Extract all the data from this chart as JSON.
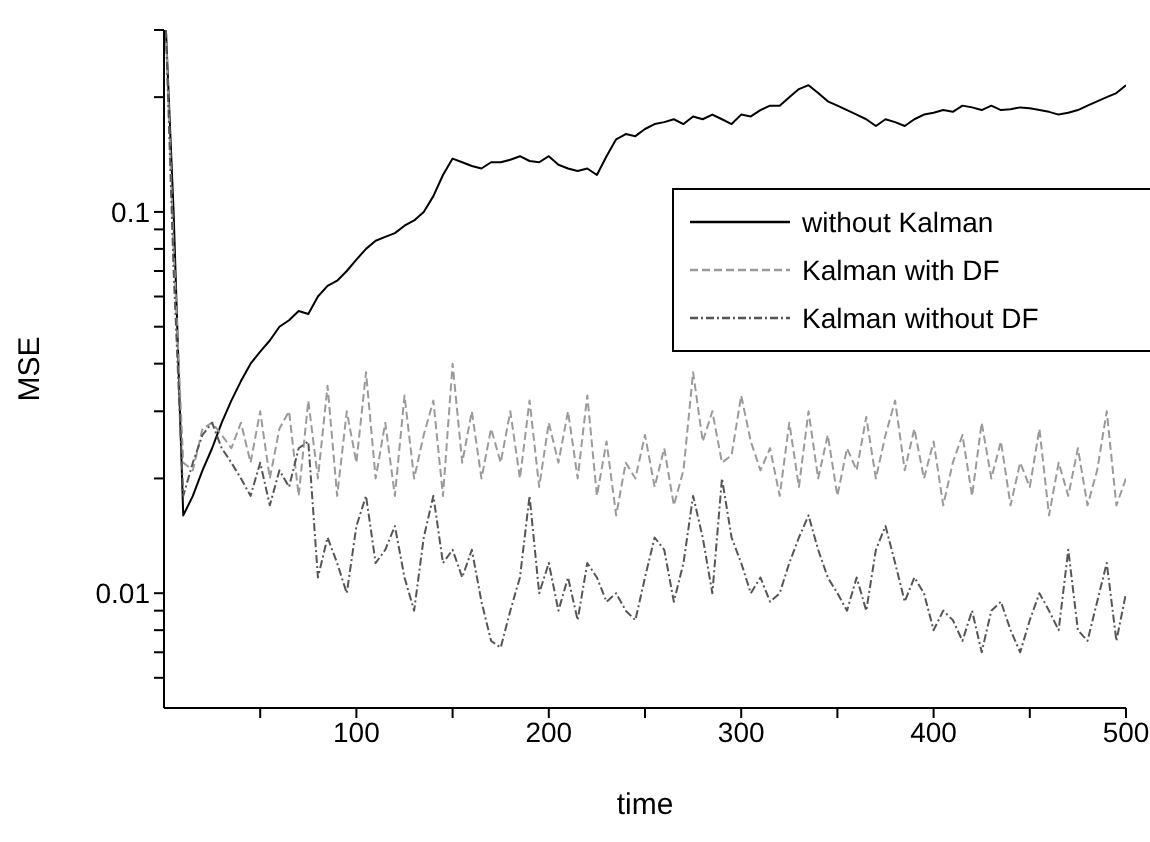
{
  "chart_data": {
    "type": "line",
    "xlabel": "time",
    "ylabel": "MSE",
    "log": "y",
    "xlim": [
      0,
      500
    ],
    "ylim": [
      0.005,
      0.3
    ],
    "xticks": [
      {
        "value": 50,
        "label": null
      },
      100,
      {
        "value": 150,
        "label": null
      },
      200,
      {
        "value": 250,
        "label": null
      },
      300,
      {
        "value": 350,
        "label": null
      },
      400,
      {
        "value": 450,
        "label": null
      },
      500
    ],
    "yticks": [
      {
        "value": 0.006,
        "label": null
      },
      {
        "value": 0.007,
        "label": null
      },
      {
        "value": 0.008,
        "label": null
      },
      {
        "value": 0.009,
        "label": null
      },
      0.01,
      {
        "value": 0.02,
        "label": null
      },
      {
        "value": 0.03,
        "label": null
      },
      {
        "value": 0.04,
        "label": null
      },
      {
        "value": 0.05,
        "label": null
      },
      {
        "value": 0.06,
        "label": null
      },
      {
        "value": 0.07,
        "label": null
      },
      {
        "value": 0.08,
        "label": null
      },
      {
        "value": 0.09,
        "label": null
      },
      0.1,
      {
        "value": 0.2,
        "label": null
      },
      {
        "value": 0.3,
        "label": null
      }
    ],
    "grid": false,
    "legend": "right",
    "marker": "none",
    "x": [
      1,
      5,
      10,
      15,
      20,
      25,
      30,
      35,
      40,
      45,
      50,
      55,
      60,
      65,
      70,
      75,
      80,
      85,
      90,
      95,
      100,
      105,
      110,
      115,
      120,
      125,
      130,
      135,
      140,
      145,
      150,
      155,
      160,
      165,
      170,
      175,
      180,
      185,
      190,
      195,
      200,
      205,
      210,
      215,
      220,
      225,
      230,
      235,
      240,
      245,
      250,
      255,
      260,
      265,
      270,
      275,
      280,
      285,
      290,
      295,
      300,
      305,
      310,
      315,
      320,
      325,
      330,
      335,
      340,
      345,
      350,
      355,
      360,
      365,
      370,
      375,
      380,
      385,
      390,
      395,
      400,
      405,
      410,
      415,
      420,
      425,
      430,
      435,
      440,
      445,
      450,
      455,
      460,
      465,
      470,
      475,
      480,
      485,
      490,
      495,
      500
    ],
    "series": [
      {
        "name": "without Kalman",
        "color": "#000000",
        "line_style": "solid",
        "values": [
          0.3,
          0.1,
          0.016,
          0.018,
          0.021,
          0.024,
          0.028,
          0.032,
          0.036,
          0.04,
          0.043,
          0.046,
          0.05,
          0.052,
          0.055,
          0.054,
          0.06,
          0.064,
          0.066,
          0.07,
          0.075,
          0.08,
          0.084,
          0.086,
          0.088,
          0.092,
          0.095,
          0.1,
          0.11,
          0.125,
          0.138,
          0.135,
          0.132,
          0.13,
          0.135,
          0.135,
          0.137,
          0.14,
          0.136,
          0.135,
          0.14,
          0.133,
          0.13,
          0.128,
          0.13,
          0.125,
          0.14,
          0.155,
          0.16,
          0.158,
          0.165,
          0.17,
          0.172,
          0.175,
          0.17,
          0.178,
          0.175,
          0.18,
          0.175,
          0.17,
          0.18,
          0.178,
          0.185,
          0.19,
          0.19,
          0.2,
          0.21,
          0.215,
          0.205,
          0.195,
          0.19,
          0.185,
          0.18,
          0.175,
          0.168,
          0.175,
          0.172,
          0.168,
          0.175,
          0.18,
          0.182,
          0.185,
          0.183,
          0.19,
          0.188,
          0.185,
          0.19,
          0.185,
          0.186,
          0.188,
          0.187,
          0.185,
          0.183,
          0.18,
          0.182,
          0.185,
          0.19,
          0.195,
          0.2,
          0.205,
          0.215
        ]
      },
      {
        "name": "Kalman with DF",
        "color": "#9a9a9a",
        "line_style": "dashed",
        "values": [
          0.3,
          0.08,
          0.022,
          0.021,
          0.027,
          0.028,
          0.026,
          0.024,
          0.028,
          0.022,
          0.03,
          0.02,
          0.027,
          0.03,
          0.018,
          0.032,
          0.02,
          0.035,
          0.018,
          0.03,
          0.022,
          0.038,
          0.02,
          0.028,
          0.018,
          0.033,
          0.02,
          0.026,
          0.032,
          0.018,
          0.04,
          0.022,
          0.03,
          0.02,
          0.027,
          0.022,
          0.03,
          0.02,
          0.032,
          0.019,
          0.028,
          0.022,
          0.03,
          0.02,
          0.033,
          0.018,
          0.025,
          0.016,
          0.022,
          0.02,
          0.026,
          0.019,
          0.024,
          0.017,
          0.021,
          0.038,
          0.025,
          0.03,
          0.022,
          0.023,
          0.033,
          0.025,
          0.021,
          0.024,
          0.018,
          0.028,
          0.019,
          0.03,
          0.02,
          0.026,
          0.018,
          0.024,
          0.021,
          0.029,
          0.02,
          0.026,
          0.032,
          0.021,
          0.027,
          0.02,
          0.025,
          0.017,
          0.022,
          0.026,
          0.018,
          0.028,
          0.02,
          0.025,
          0.017,
          0.022,
          0.019,
          0.027,
          0.016,
          0.022,
          0.018,
          0.024,
          0.017,
          0.021,
          0.03,
          0.017,
          0.02
        ]
      },
      {
        "name": "Kalman without DF",
        "color": "#555555",
        "line_style": "dotted",
        "values": [
          0.3,
          0.07,
          0.018,
          0.022,
          0.026,
          0.028,
          0.024,
          0.022,
          0.02,
          0.018,
          0.022,
          0.017,
          0.021,
          0.019,
          0.024,
          0.025,
          0.011,
          0.014,
          0.012,
          0.01,
          0.015,
          0.018,
          0.012,
          0.013,
          0.015,
          0.011,
          0.009,
          0.014,
          0.018,
          0.012,
          0.013,
          0.011,
          0.013,
          0.0095,
          0.0075,
          0.0072,
          0.009,
          0.011,
          0.018,
          0.01,
          0.012,
          0.009,
          0.011,
          0.0085,
          0.012,
          0.011,
          0.0095,
          0.01,
          0.009,
          0.0085,
          0.011,
          0.014,
          0.013,
          0.0095,
          0.012,
          0.018,
          0.014,
          0.01,
          0.02,
          0.014,
          0.012,
          0.01,
          0.011,
          0.0095,
          0.01,
          0.012,
          0.014,
          0.016,
          0.013,
          0.011,
          0.01,
          0.009,
          0.011,
          0.009,
          0.013,
          0.015,
          0.012,
          0.0095,
          0.011,
          0.01,
          0.008,
          0.009,
          0.0085,
          0.0075,
          0.009,
          0.007,
          0.009,
          0.0095,
          0.008,
          0.007,
          0.0085,
          0.01,
          0.009,
          0.008,
          0.013,
          0.008,
          0.0075,
          0.0095,
          0.012,
          0.0075,
          0.01
        ]
      }
    ]
  }
}
